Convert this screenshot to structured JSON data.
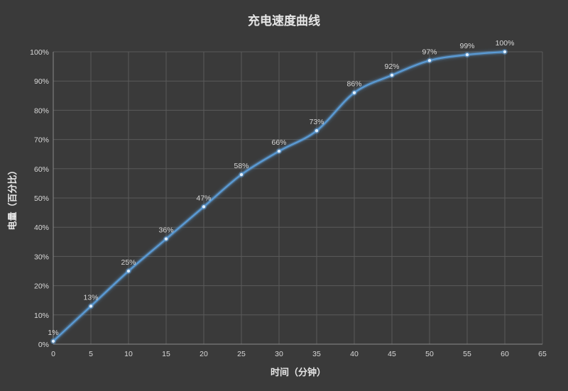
{
  "chart_data": {
    "type": "line",
    "title": "充电速度曲线",
    "xlabel": "时间（分钟）",
    "ylabel": "电量（百分比）",
    "xlim": [
      0,
      65
    ],
    "ylim": [
      0,
      100
    ],
    "x_ticks": [
      0,
      5,
      10,
      15,
      20,
      25,
      30,
      35,
      40,
      45,
      50,
      55,
      60,
      65
    ],
    "y_tick_labels": [
      "0%",
      "10%",
      "20%",
      "30%",
      "40%",
      "50%",
      "60%",
      "70%",
      "80%",
      "90%",
      "100%"
    ],
    "grid": true,
    "smooth": true,
    "line_color": "#5b9bd5",
    "series": [
      {
        "x": [
          0,
          5,
          10,
          15,
          20,
          25,
          30,
          35,
          40,
          45,
          50,
          55,
          60
        ],
        "values": [
          1,
          13,
          25,
          36,
          47,
          58,
          66,
          73,
          86,
          92,
          97,
          99,
          100
        ],
        "data_labels": [
          "1%",
          "13%",
          "25%",
          "36%",
          "47%",
          "58%",
          "66%",
          "73%",
          "86%",
          "92%",
          "97%",
          "99%",
          "100%"
        ]
      }
    ]
  }
}
